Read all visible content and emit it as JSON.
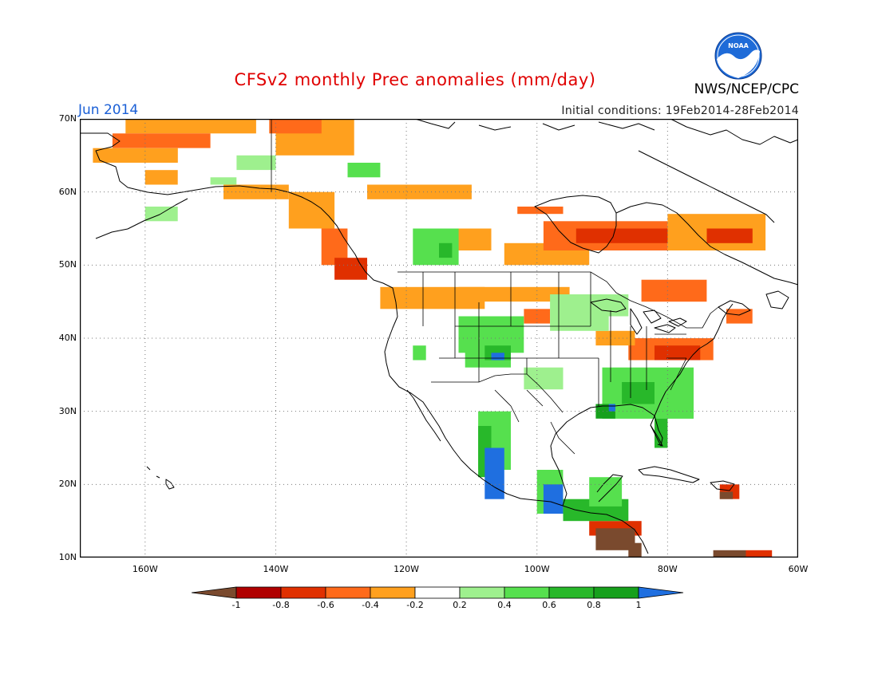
{
  "title": "CFSv2 monthly Prec anomalies (mm/day)",
  "agency": "NWS/NCEP/CPC",
  "logo_text": "NOAA",
  "month_label": "Jun 2014",
  "initial_conditions": "Initial conditions: 19Feb2014-28Feb2014",
  "map": {
    "lon_range": [
      -170,
      -60
    ],
    "lat_range": [
      10,
      70
    ],
    "lat_ticks": [
      {
        "value": 70,
        "label": "70N"
      },
      {
        "value": 60,
        "label": "60N"
      },
      {
        "value": 50,
        "label": "50N"
      },
      {
        "value": 40,
        "label": "40N"
      },
      {
        "value": 30,
        "label": "30N"
      },
      {
        "value": 20,
        "label": "20N"
      },
      {
        "value": 10,
        "label": "10N"
      }
    ],
    "lon_ticks": [
      {
        "value": -160,
        "label": "160W"
      },
      {
        "value": -140,
        "label": "140W"
      },
      {
        "value": -120,
        "label": "120W"
      },
      {
        "value": -100,
        "label": "100W"
      },
      {
        "value": -80,
        "label": "80W"
      },
      {
        "value": -60,
        "label": "60W"
      }
    ]
  },
  "colorbar": {
    "labels": [
      "-1",
      "-0.8",
      "-0.6",
      "-0.4",
      "-0.2",
      "0.2",
      "0.4",
      "0.6",
      "0.8",
      "1"
    ],
    "colors": {
      "lt_-1": "#7a4a2e",
      "-1_-0.8": "#b00000",
      "-0.8_-0.6": "#e03000",
      "-0.6_-0.4": "#ff6a1a",
      "-0.4_-0.2": "#ffa01e",
      "-0.2_0.2": "#ffffff",
      "0.2_0.4": "#9ef08e",
      "0.4_0.6": "#56e04e",
      "0.6_0.8": "#28b82a",
      "0.8_1": "#16a01c",
      "gt_1": "#1f6fe0"
    }
  },
  "anomaly_regions": [
    {
      "lon": [
        -163,
        -143
      ],
      "lat": [
        68,
        70
      ],
      "value": -0.3
    },
    {
      "lon": [
        -165,
        -150
      ],
      "lat": [
        66,
        68
      ],
      "value": -0.5
    },
    {
      "lon": [
        -168,
        -155
      ],
      "lat": [
        64,
        66
      ],
      "value": -0.3
    },
    {
      "lon": [
        -160,
        -155
      ],
      "lat": [
        61,
        63
      ],
      "value": -0.3
    },
    {
      "lon": [
        -140,
        -128
      ],
      "lat": [
        65,
        70
      ],
      "value": -0.3
    },
    {
      "lon": [
        -141,
        -133
      ],
      "lat": [
        68,
        70
      ],
      "value": -0.5
    },
    {
      "lon": [
        -148,
        -138
      ],
      "lat": [
        59,
        61
      ],
      "value": -0.3
    },
    {
      "lon": [
        -138,
        -131
      ],
      "lat": [
        55,
        60
      ],
      "value": -0.3
    },
    {
      "lon": [
        -133,
        -129
      ],
      "lat": [
        50,
        55
      ],
      "value": -0.5
    },
    {
      "lon": [
        -131,
        -126
      ],
      "lat": [
        48,
        51
      ],
      "value": -0.7
    },
    {
      "lon": [
        -124,
        -108
      ],
      "lat": [
        44,
        47
      ],
      "value": -0.3
    },
    {
      "lon": [
        -126,
        -110
      ],
      "lat": [
        59,
        61
      ],
      "value": -0.3
    },
    {
      "lon": [
        -118,
        -107
      ],
      "lat": [
        52,
        55
      ],
      "value": -0.3
    },
    {
      "lon": [
        -105,
        -92
      ],
      "lat": [
        50,
        53
      ],
      "value": -0.3
    },
    {
      "lon": [
        -112,
        -95
      ],
      "lat": [
        45,
        47
      ],
      "value": -0.3
    },
    {
      "lon": [
        -102,
        -98
      ],
      "lat": [
        42,
        44
      ],
      "value": -0.5
    },
    {
      "lon": [
        -103,
        -96
      ],
      "lat": [
        57,
        58
      ],
      "value": -0.5
    },
    {
      "lon": [
        -99,
        -80
      ],
      "lat": [
        52,
        56
      ],
      "value": -0.4
    },
    {
      "lon": [
        -94,
        -79
      ],
      "lat": [
        53,
        55
      ],
      "value": -0.6
    },
    {
      "lon": [
        -80,
        -65
      ],
      "lat": [
        52,
        57
      ],
      "value": -0.3
    },
    {
      "lon": [
        -74,
        -67
      ],
      "lat": [
        53,
        55
      ],
      "value": -0.6
    },
    {
      "lon": [
        -84,
        -74
      ],
      "lat": [
        45,
        48
      ],
      "value": -0.4
    },
    {
      "lon": [
        -71,
        -67
      ],
      "lat": [
        42,
        44
      ],
      "value": -0.5
    },
    {
      "lon": [
        -86,
        -73
      ],
      "lat": [
        37,
        40
      ],
      "value": -0.4
    },
    {
      "lon": [
        -82,
        -75
      ],
      "lat": [
        37,
        39
      ],
      "value": -0.7
    },
    {
      "lon": [
        -91,
        -85
      ],
      "lat": [
        39,
        41
      ],
      "value": -0.3
    },
    {
      "lon": [
        -72,
        -69
      ],
      "lat": [
        18,
        20
      ],
      "value": -0.6
    },
    {
      "lon": [
        -72,
        -70
      ],
      "lat": [
        18,
        19
      ],
      "value": -1.1
    },
    {
      "lon": [
        -92,
        -84
      ],
      "lat": [
        13,
        15
      ],
      "value": -0.6
    },
    {
      "lon": [
        -91,
        -85
      ],
      "lat": [
        11,
        14
      ],
      "value": -1.1
    },
    {
      "lon": [
        -86,
        -84
      ],
      "lat": [
        10,
        12
      ],
      "value": -1.1
    },
    {
      "lon": [
        -73,
        -68
      ],
      "lat": [
        10,
        11
      ],
      "value": -1.1
    },
    {
      "lon": [
        -68,
        -64
      ],
      "lat": [
        10,
        11
      ],
      "value": -0.6
    },
    {
      "lon": [
        -146,
        -140
      ],
      "lat": [
        63,
        65
      ],
      "value": 0.3
    },
    {
      "lon": [
        -150,
        -146
      ],
      "lat": [
        61,
        62
      ],
      "value": 0.3
    },
    {
      "lon": [
        -160,
        -155
      ],
      "lat": [
        56,
        58
      ],
      "value": 0.3
    },
    {
      "lon": [
        -129,
        -124
      ],
      "lat": [
        62,
        64
      ],
      "value": 0.5
    },
    {
      "lon": [
        -119,
        -112
      ],
      "lat": [
        50,
        55
      ],
      "value": 0.5
    },
    {
      "lon": [
        -115,
        -113
      ],
      "lat": [
        51,
        53
      ],
      "value": 0.7
    },
    {
      "lon": [
        -112,
        -102
      ],
      "lat": [
        38,
        43
      ],
      "value": 0.4
    },
    {
      "lon": [
        -111,
        -104
      ],
      "lat": [
        36,
        40
      ],
      "value": 0.5
    },
    {
      "lon": [
        -108,
        -104
      ],
      "lat": [
        37,
        39
      ],
      "value": 0.7
    },
    {
      "lon": [
        -107,
        -105
      ],
      "lat": [
        37,
        38
      ],
      "value": 1.2
    },
    {
      "lon": [
        -102,
        -96
      ],
      "lat": [
        33,
        36
      ],
      "value": 0.3
    },
    {
      "lon": [
        -119,
        -117
      ],
      "lat": [
        37,
        39
      ],
      "value": 0.5
    },
    {
      "lon": [
        -98,
        -89
      ],
      "lat": [
        41,
        43
      ],
      "value": 0.3
    },
    {
      "lon": [
        -98,
        -86
      ],
      "lat": [
        43,
        46
      ],
      "value": 0.3
    },
    {
      "lon": [
        -90,
        -76
      ],
      "lat": [
        29,
        36
      ],
      "value": 0.4
    },
    {
      "lon": [
        -87,
        -82
      ],
      "lat": [
        31,
        34
      ],
      "value": 0.6
    },
    {
      "lon": [
        -91,
        -88
      ],
      "lat": [
        29,
        31
      ],
      "value": 0.8
    },
    {
      "lon": [
        -89,
        -88
      ],
      "lat": [
        30,
        31
      ],
      "value": 1.2
    },
    {
      "lon": [
        -82,
        -80
      ],
      "lat": [
        25,
        29
      ],
      "value": 0.6
    },
    {
      "lon": [
        -109,
        -104
      ],
      "lat": [
        22,
        30
      ],
      "value": 0.5
    },
    {
      "lon": [
        -109,
        -107
      ],
      "lat": [
        21,
        28
      ],
      "value": 0.7
    },
    {
      "lon": [
        -108,
        -105
      ],
      "lat": [
        18,
        25
      ],
      "value": 1.2
    },
    {
      "lon": [
        -100,
        -96
      ],
      "lat": [
        16,
        22
      ],
      "value": 0.5
    },
    {
      "lon": [
        -99,
        -96
      ],
      "lat": [
        16,
        20
      ],
      "value": 1.2
    },
    {
      "lon": [
        -96,
        -86
      ],
      "lat": [
        15,
        18
      ],
      "value": 0.7
    },
    {
      "lon": [
        -92,
        -87
      ],
      "lat": [
        17,
        21
      ],
      "value": 0.4
    }
  ]
}
